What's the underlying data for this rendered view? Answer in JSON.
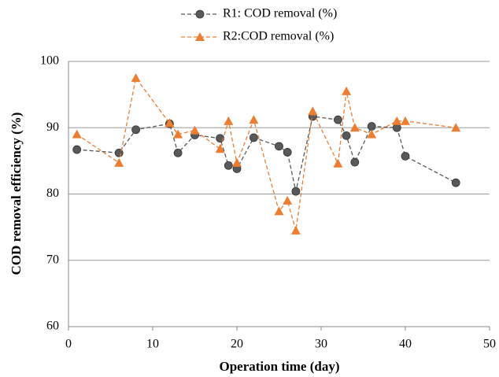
{
  "chart_data": {
    "type": "line",
    "xlabel": "Operation time (day)",
    "ylabel": "COD removal efficiency (%)",
    "x": [
      1,
      6,
      8,
      12,
      13,
      15,
      18,
      19,
      20,
      22,
      25,
      26,
      27,
      29,
      32,
      33,
      34,
      36,
      39,
      40,
      46
    ],
    "series": [
      {
        "name": "R1: COD removal (%)",
        "color": "#595959",
        "marker": "circle",
        "values": [
          86.7,
          86.2,
          89.7,
          90.6,
          86.2,
          88.9,
          88.4,
          84.3,
          83.8,
          88.5,
          87.2,
          86.3,
          80.4,
          91.7,
          91.2,
          88.8,
          84.8,
          90.2,
          90.0,
          85.7,
          81.7
        ]
      },
      {
        "name": "R2:COD removal (%)",
        "color": "#ed7d31",
        "marker": "triangle",
        "values": [
          89.0,
          84.7,
          97.5,
          90.7,
          89.0,
          89.6,
          86.8,
          91.0,
          84.7,
          91.2,
          77.4,
          79.0,
          74.5,
          92.5,
          84.6,
          95.5,
          90.0,
          89.0,
          91.0,
          91.0,
          90.0
        ]
      }
    ],
    "xlim": [
      0,
      50
    ],
    "xticks": [
      0,
      10,
      20,
      30,
      40,
      50
    ],
    "ylim": [
      60,
      100
    ],
    "yticks": [
      60,
      70,
      80,
      90,
      100
    ],
    "grid": true,
    "legend": "top"
  }
}
